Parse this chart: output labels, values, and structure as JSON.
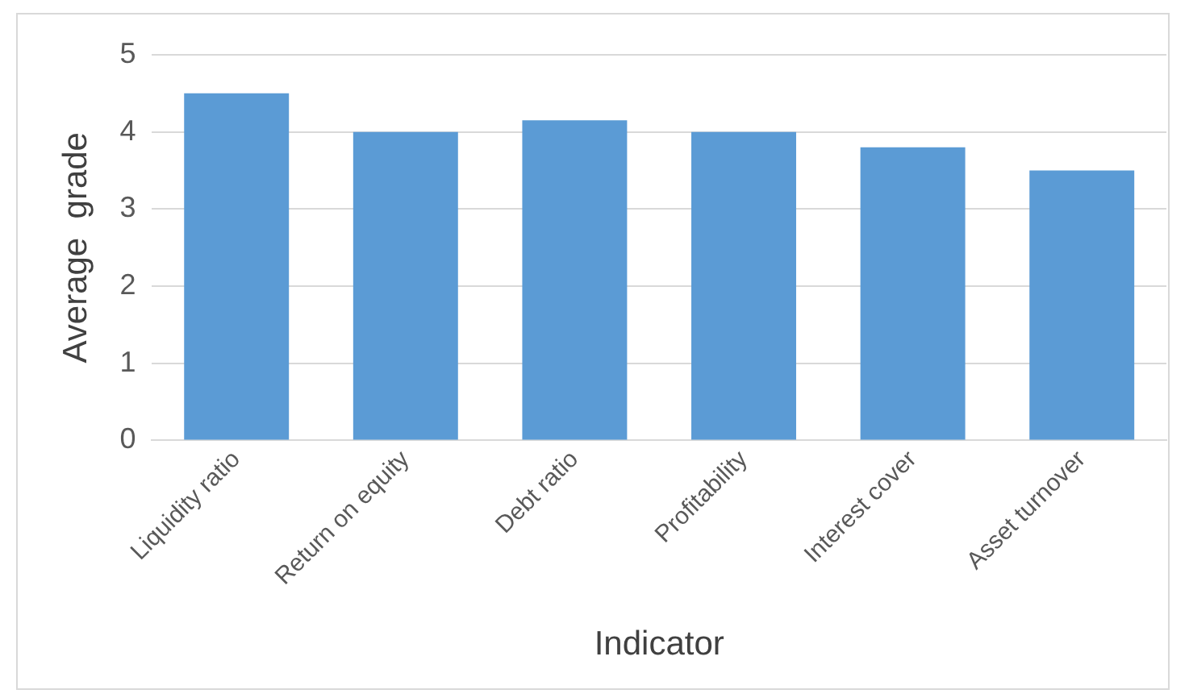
{
  "chart_data": {
    "type": "bar",
    "xlabel": "Indicator",
    "ylabel": "Average  grade",
    "categories": [
      "Liquidity ratio",
      "Return on equity",
      "Debt ratio",
      "Profitability",
      "Interest cover",
      "Asset turnover"
    ],
    "values": [
      4.5,
      4.0,
      4.15,
      4.0,
      3.8,
      3.5
    ],
    "color": "#5b9bd5",
    "ylim": [
      0,
      5
    ],
    "yticks": [
      0,
      1,
      2,
      3,
      4,
      5
    ],
    "grid": "y",
    "legend": false
  }
}
